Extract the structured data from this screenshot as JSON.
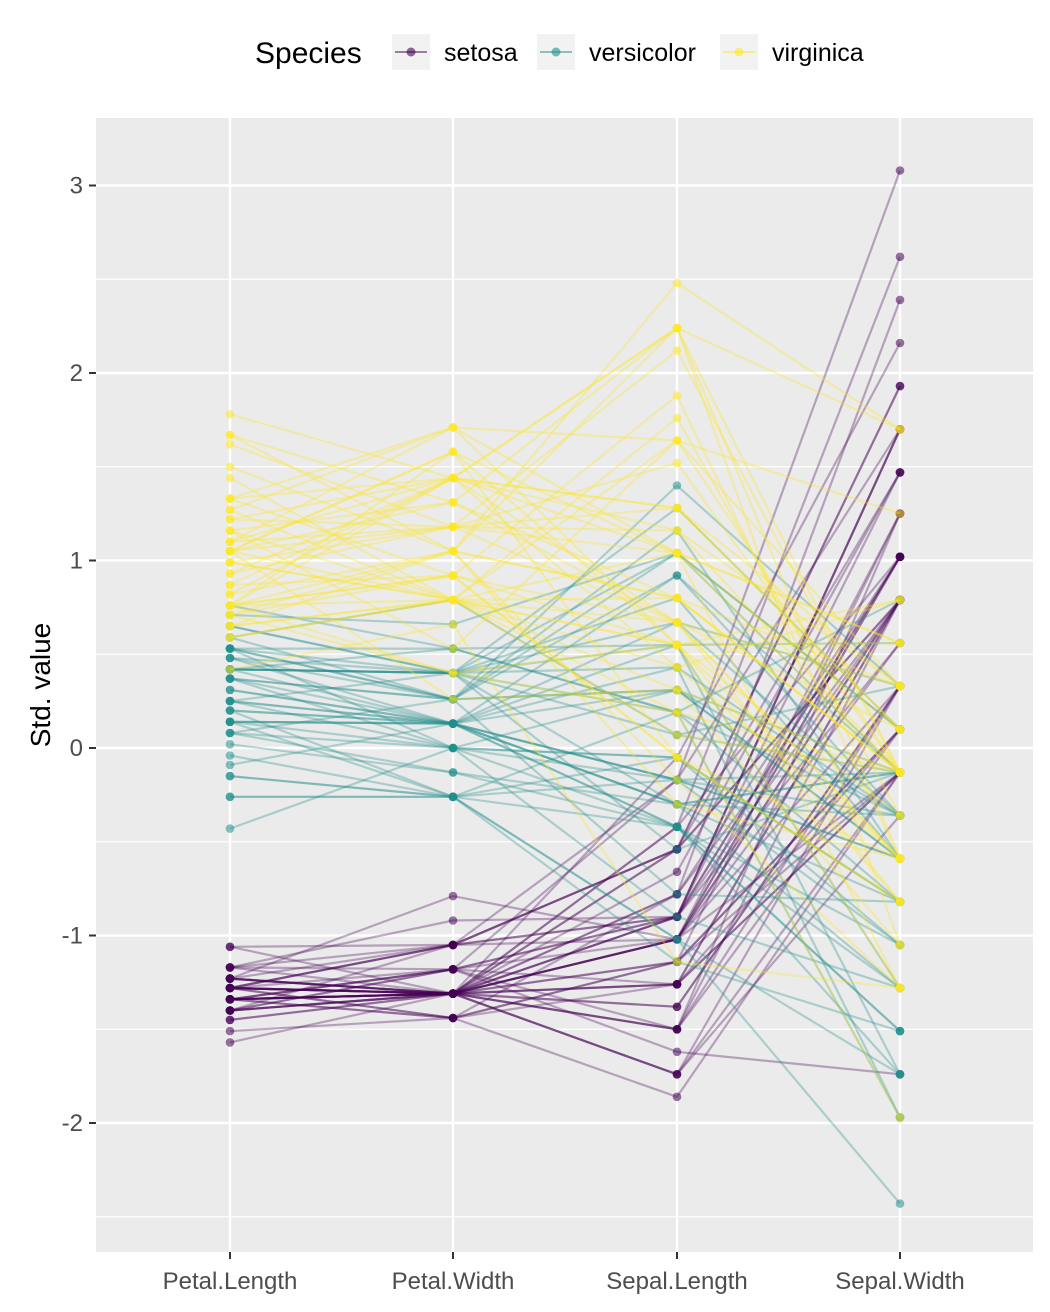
{
  "chart_data": {
    "type": "line",
    "subtype": "parallel-coordinates",
    "ylabel": "Std. value",
    "xlabel": "",
    "x": [
      "Petal.Length",
      "Petal.Width",
      "Sepal.Length",
      "Sepal.Width"
    ],
    "ylim": [
      -2.6,
      3.3
    ],
    "yticks": [
      3,
      2,
      1,
      0,
      -1,
      -2
    ],
    "ytick_labels": [
      "3",
      "2",
      "1",
      "0",
      "-1",
      "-2"
    ],
    "grid": true,
    "legend": {
      "title": "Species",
      "position": "top",
      "entries": [
        "setosa",
        "versicolor",
        "virginica"
      ]
    },
    "colors": {
      "setosa": "#440154",
      "versicolor": "#21908C",
      "virginica": "#FDE725",
      "panel": "#EBEBEB",
      "grid_major": "#FFFFFF"
    },
    "series": [
      {
        "name": "setosa",
        "color": "#440154",
        "lines": [
          [
            -1.34,
            -1.31,
            -0.9,
            1.02
          ],
          [
            -1.34,
            -1.31,
            -1.14,
            -0.13
          ],
          [
            -1.4,
            -1.31,
            -1.38,
            0.33
          ],
          [
            -1.28,
            -1.31,
            -1.5,
            0.1
          ],
          [
            -1.34,
            -1.31,
            -1.02,
            1.25
          ],
          [
            -1.17,
            -1.05,
            -0.54,
            1.93
          ],
          [
            -1.34,
            -1.18,
            -1.5,
            0.79
          ],
          [
            -1.28,
            -1.31,
            -1.02,
            0.79
          ],
          [
            -1.34,
            -1.31,
            -1.74,
            -0.36
          ],
          [
            -1.28,
            -1.44,
            -1.14,
            0.1
          ],
          [
            -1.28,
            -1.31,
            -0.54,
            1.47
          ],
          [
            -1.23,
            -1.31,
            -1.26,
            0.79
          ],
          [
            -1.34,
            -1.44,
            -1.26,
            -0.13
          ],
          [
            -1.51,
            -1.44,
            -1.86,
            -0.13
          ],
          [
            -1.45,
            -1.31,
            -0.05,
            2.16
          ],
          [
            -1.28,
            -1.05,
            -0.17,
            3.08
          ],
          [
            -1.4,
            -1.05,
            -0.54,
            1.93
          ],
          [
            -1.34,
            -1.18,
            -0.9,
            1.02
          ],
          [
            -1.17,
            -1.18,
            -0.17,
            1.7
          ],
          [
            -1.28,
            -1.18,
            -0.9,
            1.7
          ],
          [
            -1.17,
            -1.31,
            -0.54,
            0.79
          ],
          [
            -1.28,
            -1.05,
            -0.9,
            1.47
          ],
          [
            -1.57,
            -1.31,
            -1.5,
            1.25
          ],
          [
            -1.17,
            -0.92,
            -0.9,
            0.56
          ],
          [
            -1.06,
            -1.31,
            -1.26,
            0.79
          ],
          [
            -1.23,
            -1.31,
            -1.02,
            -0.13
          ],
          [
            -1.23,
            -1.05,
            -1.02,
            0.79
          ],
          [
            -1.28,
            -1.31,
            -0.78,
            1.02
          ],
          [
            -1.34,
            -1.31,
            -0.78,
            0.79
          ],
          [
            -1.23,
            -1.31,
            -1.38,
            0.33
          ],
          [
            -1.23,
            -1.31,
            -1.26,
            0.1
          ],
          [
            -1.28,
            -1.05,
            -0.54,
            0.79
          ],
          [
            -1.28,
            -1.44,
            -0.78,
            2.39
          ],
          [
            -1.34,
            -1.31,
            -0.42,
            2.62
          ],
          [
            -1.28,
            -1.31,
            -1.14,
            0.1
          ],
          [
            -1.45,
            -1.31,
            -1.02,
            0.33
          ],
          [
            -1.4,
            -1.31,
            -0.42,
            1.02
          ],
          [
            -1.34,
            -1.44,
            -1.14,
            1.25
          ],
          [
            -1.4,
            -1.31,
            -1.74,
            -0.13
          ],
          [
            -1.28,
            -1.31,
            -0.9,
            0.79
          ],
          [
            -1.4,
            -1.18,
            -1.02,
            1.02
          ],
          [
            -1.4,
            -1.18,
            -1.62,
            -1.74
          ],
          [
            -1.4,
            -1.31,
            -1.74,
            0.33
          ],
          [
            -1.23,
            -0.79,
            -1.02,
            1.02
          ],
          [
            -1.06,
            -1.05,
            -0.9,
            1.7
          ],
          [
            -1.34,
            -1.18,
            -1.26,
            -0.13
          ],
          [
            -1.23,
            -1.31,
            -0.9,
            1.7
          ],
          [
            -1.34,
            -1.31,
            -1.5,
            0.33
          ],
          [
            -1.28,
            -1.31,
            -0.66,
            1.47
          ],
          [
            -1.34,
            -1.31,
            -1.02,
            0.56
          ]
        ]
      },
      {
        "name": "versicolor",
        "color": "#21908C",
        "lines": [
          [
            0.53,
            0.26,
            1.4,
            0.33
          ],
          [
            0.42,
            0.4,
            0.67,
            0.33
          ],
          [
            0.65,
            0.4,
            1.28,
            0.1
          ],
          [
            0.14,
            0.13,
            -0.42,
            -1.74
          ],
          [
            0.48,
            0.4,
            0.8,
            -0.59
          ],
          [
            0.42,
            0.13,
            -0.17,
            -0.59
          ],
          [
            0.53,
            0.53,
            0.55,
            0.56
          ],
          [
            -0.26,
            -0.26,
            -1.14,
            -1.51
          ],
          [
            0.48,
            0.13,
            0.92,
            -0.36
          ],
          [
            0.08,
            0.26,
            -0.78,
            -0.82
          ],
          [
            -0.15,
            -0.26,
            -1.02,
            -2.43
          ],
          [
            0.25,
            0.4,
            0.07,
            -0.13
          ],
          [
            0.14,
            -0.26,
            0.19,
            -1.97
          ],
          [
            0.53,
            0.26,
            0.31,
            -0.36
          ],
          [
            -0.09,
            0.13,
            -0.3,
            -0.36
          ],
          [
            0.37,
            0.26,
            1.04,
            0.1
          ],
          [
            0.42,
            0.4,
            -0.3,
            -0.13
          ],
          [
            0.2,
            -0.26,
            -0.05,
            -0.82
          ],
          [
            0.42,
            0.4,
            0.43,
            -1.97
          ],
          [
            0.08,
            -0.13,
            -0.3,
            -1.28
          ],
          [
            0.59,
            0.79,
            0.07,
            0.33
          ],
          [
            0.14,
            0.13,
            0.31,
            -0.59
          ],
          [
            0.65,
            0.4,
            0.55,
            -1.28
          ],
          [
            0.53,
            0.0,
            0.31,
            -0.59
          ],
          [
            0.31,
            0.13,
            0.67,
            -0.36
          ],
          [
            0.37,
            0.26,
            0.92,
            -0.13
          ],
          [
            0.59,
            0.26,
            1.16,
            -0.59
          ],
          [
            0.71,
            0.66,
            1.04,
            -0.13
          ],
          [
            0.42,
            0.4,
            0.19,
            -0.36
          ],
          [
            -0.15,
            -0.26,
            -0.17,
            -1.05
          ],
          [
            0.02,
            -0.13,
            -0.42,
            -1.51
          ],
          [
            -0.04,
            -0.26,
            -0.42,
            -1.51
          ],
          [
            0.08,
            0.0,
            -0.05,
            -0.82
          ],
          [
            0.76,
            0.53,
            0.19,
            -0.82
          ],
          [
            0.42,
            0.4,
            -0.54,
            -0.13
          ],
          [
            0.42,
            0.53,
            0.19,
            0.79
          ],
          [
            0.53,
            0.4,
            1.04,
            0.1
          ],
          [
            0.37,
            0.13,
            0.55,
            -1.74
          ],
          [
            0.2,
            0.13,
            -0.3,
            -0.13
          ],
          [
            0.14,
            0.13,
            -0.42,
            -1.28
          ],
          [
            0.37,
            0.0,
            -0.42,
            -1.05
          ],
          [
            0.48,
            0.26,
            0.31,
            -0.13
          ],
          [
            0.14,
            0.0,
            -0.05,
            -1.05
          ],
          [
            -0.26,
            -0.26,
            -1.02,
            -1.74
          ],
          [
            0.25,
            0.13,
            -0.3,
            -0.82
          ],
          [
            0.25,
            0.0,
            -0.17,
            -0.13
          ],
          [
            0.25,
            0.13,
            -0.17,
            -0.36
          ],
          [
            0.31,
            0.13,
            0.43,
            -0.36
          ],
          [
            -0.43,
            0.0,
            -0.9,
            -1.28
          ],
          [
            0.2,
            0.13,
            -0.17,
            -0.59
          ]
        ]
      },
      {
        "name": "virginica",
        "color": "#FDE725",
        "lines": [
          [
            1.27,
            1.71,
            0.55,
            0.56
          ],
          [
            0.76,
            0.92,
            -0.05,
            -0.82
          ],
          [
            1.22,
            1.18,
            1.52,
            -0.13
          ],
          [
            1.05,
            0.79,
            0.55,
            -0.36
          ],
          [
            1.16,
            1.31,
            0.8,
            -0.13
          ],
          [
            1.62,
            1.18,
            2.12,
            -0.13
          ],
          [
            0.42,
            0.66,
            -1.14,
            -1.28
          ],
          [
            1.44,
            0.79,
            1.76,
            -0.36
          ],
          [
            1.16,
            0.79,
            1.04,
            -1.28
          ],
          [
            1.33,
            1.71,
            1.64,
            1.25
          ],
          [
            0.76,
            1.05,
            0.8,
            0.33
          ],
          [
            0.87,
            0.92,
            0.67,
            -0.82
          ],
          [
            0.99,
            1.18,
            1.16,
            -0.13
          ],
          [
            0.71,
            1.05,
            -0.17,
            -1.28
          ],
          [
            0.76,
            1.58,
            -0.05,
            -0.59
          ],
          [
            0.87,
            1.44,
            0.67,
            0.33
          ],
          [
            0.99,
            0.79,
            0.8,
            -0.13
          ],
          [
            1.67,
            1.31,
            2.24,
            1.7
          ],
          [
            1.78,
            1.44,
            2.24,
            -1.05
          ],
          [
            0.71,
            0.4,
            0.19,
            -1.97
          ],
          [
            1.1,
            1.44,
            1.28,
            0.33
          ],
          [
            0.65,
            1.05,
            -0.3,
            -0.59
          ],
          [
            1.67,
            1.05,
            2.24,
            -0.59
          ],
          [
            0.65,
            0.79,
            0.55,
            -0.82
          ],
          [
            1.1,
            1.18,
            1.04,
            0.56
          ],
          [
            1.27,
            0.79,
            1.64,
            0.33
          ],
          [
            0.59,
            0.79,
            0.43,
            -0.59
          ],
          [
            0.65,
            0.79,
            0.31,
            -0.13
          ],
          [
            1.05,
            1.18,
            0.67,
            -0.59
          ],
          [
            1.16,
            0.53,
            1.64,
            -0.13
          ],
          [
            1.33,
            0.92,
            1.88,
            -0.59
          ],
          [
            1.5,
            1.05,
            2.48,
            1.7
          ],
          [
            1.05,
            1.31,
            0.67,
            -0.59
          ],
          [
            0.76,
            0.4,
            0.55,
            -0.59
          ],
          [
            1.05,
            0.26,
            0.31,
            -1.05
          ],
          [
            1.33,
            1.44,
            2.24,
            -0.13
          ],
          [
            1.05,
            1.58,
            0.55,
            0.79
          ],
          [
            0.99,
            0.79,
            0.67,
            0.1
          ],
          [
            0.59,
            0.79,
            0.19,
            -0.13
          ],
          [
            0.93,
            1.18,
            1.28,
            0.1
          ],
          [
            1.05,
            1.58,
            1.04,
            0.1
          ],
          [
            0.76,
            1.44,
            1.28,
            0.1
          ],
          [
            0.76,
            0.92,
            -0.05,
            -0.82
          ],
          [
            1.22,
            1.44,
            1.16,
            0.33
          ],
          [
            1.1,
            1.71,
            1.04,
            0.56
          ],
          [
            0.82,
            1.44,
            1.04,
            -0.13
          ],
          [
            0.71,
            0.92,
            0.55,
            -1.28
          ],
          [
            0.82,
            1.05,
            0.8,
            -0.13
          ],
          [
            0.93,
            1.44,
            0.43,
            0.79
          ],
          [
            0.76,
            0.79,
            0.07,
            -0.13
          ]
        ]
      }
    ]
  }
}
